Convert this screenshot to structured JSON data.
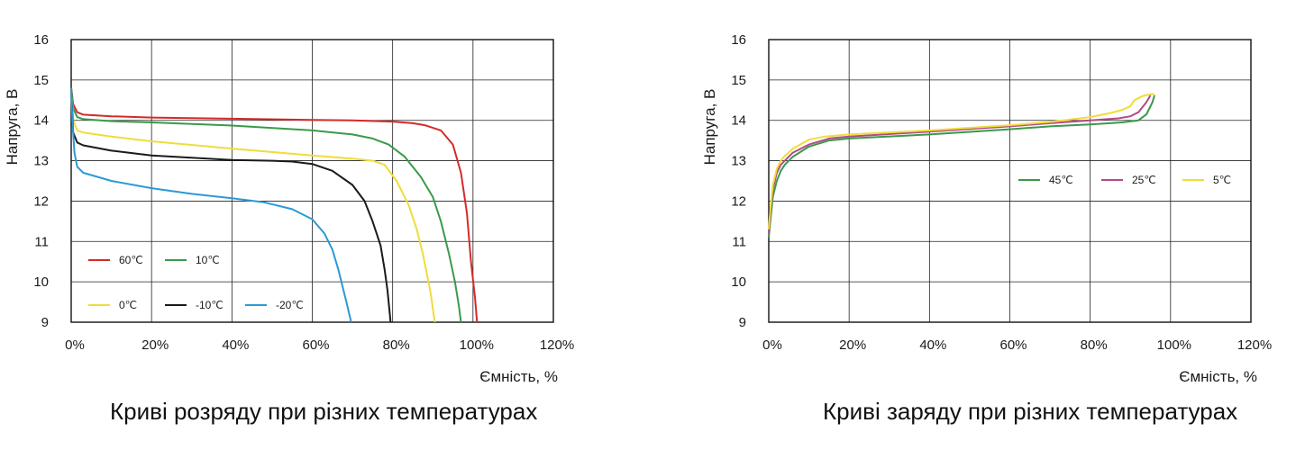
{
  "chart_data": [
    {
      "type": "line",
      "caption": "Криві розряду при різних температурах",
      "xlabel": "Ємність, %",
      "ylabel": "Напруга, В",
      "xlim": [
        0,
        120
      ],
      "ylim": [
        9,
        16
      ],
      "x_ticks": [
        "0%",
        "20%",
        "40%",
        "60%",
        "80%",
        "100%",
        "120%"
      ],
      "y_ticks": [
        "9",
        "10",
        "11",
        "12",
        "13",
        "14",
        "15",
        "16"
      ],
      "grid": true,
      "legend_position": "inside-bottom-left",
      "series": [
        {
          "name": "60℃",
          "color": "#d42a2a",
          "x": [
            0,
            0.5,
            1.5,
            3,
            10,
            20,
            40,
            60,
            70,
            80,
            85,
            88,
            92,
            95,
            97,
            98.5,
            99.5,
            100.5,
            101
          ],
          "y": [
            14.8,
            14.4,
            14.2,
            14.14,
            14.1,
            14.07,
            14.04,
            14.01,
            14.0,
            13.97,
            13.93,
            13.88,
            13.75,
            13.4,
            12.7,
            11.7,
            10.5,
            9.6,
            9.0
          ]
        },
        {
          "name": "10℃",
          "color": "#3a9a4a",
          "x": [
            0,
            0.5,
            1.5,
            3,
            10,
            20,
            40,
            60,
            70,
            75,
            79,
            83,
            87,
            90,
            92,
            94,
            95.5,
            96.5,
            97
          ],
          "y": [
            14.8,
            14.3,
            14.08,
            14.03,
            13.98,
            13.95,
            13.87,
            13.75,
            13.65,
            13.55,
            13.4,
            13.1,
            12.6,
            12.1,
            11.5,
            10.7,
            10.0,
            9.4,
            9.0
          ]
        },
        {
          "name": "0℃",
          "color": "#f0dc3c",
          "x": [
            0,
            0.5,
            1.5,
            3,
            10,
            20,
            40,
            60,
            70,
            75,
            78,
            81,
            84,
            86,
            87.5,
            88.5,
            89.5,
            90.2,
            90.5
          ],
          "y": [
            14.8,
            14.0,
            13.75,
            13.7,
            13.6,
            13.48,
            13.3,
            13.13,
            13.05,
            13.0,
            12.9,
            12.5,
            11.9,
            11.3,
            10.7,
            10.2,
            9.7,
            9.2,
            9.0
          ]
        },
        {
          "name": "-10℃",
          "color": "#1a1a1a",
          "x": [
            0,
            0.5,
            1.5,
            3,
            10,
            20,
            40,
            50,
            55,
            60,
            65,
            70,
            73,
            75,
            77,
            78,
            78.7,
            79.2,
            79.5
          ],
          "y": [
            14.8,
            13.7,
            13.45,
            13.38,
            13.25,
            13.13,
            13.02,
            13.0,
            12.98,
            12.92,
            12.75,
            12.4,
            12.0,
            11.5,
            10.9,
            10.3,
            9.8,
            9.3,
            9.0
          ]
        },
        {
          "name": "-20℃",
          "color": "#2a9ad6",
          "x": [
            0,
            0.3,
            0.8,
            1.5,
            3,
            10,
            20,
            30,
            40,
            48,
            55,
            60,
            63,
            65,
            66.5,
            67.5,
            68.5,
            69.2,
            69.7
          ],
          "y": [
            14.8,
            14.0,
            13.2,
            12.85,
            12.7,
            12.5,
            12.32,
            12.18,
            12.07,
            11.97,
            11.8,
            11.55,
            11.2,
            10.8,
            10.3,
            9.9,
            9.5,
            9.2,
            9.0
          ]
        }
      ]
    },
    {
      "type": "line",
      "caption": "Криві заряду при різних температурах",
      "xlabel": "Ємність, %",
      "ylabel": "Напруга, В",
      "xlim": [
        0,
        120
      ],
      "ylim": [
        9,
        16
      ],
      "x_ticks": [
        "0%",
        "20%",
        "40%",
        "60%",
        "80%",
        "100%",
        "120%"
      ],
      "y_ticks": [
        "9",
        "10",
        "11",
        "12",
        "13",
        "14",
        "15",
        "16"
      ],
      "grid": true,
      "legend_position": "inside-right",
      "series": [
        {
          "name": "45℃",
          "color": "#3a9a4a",
          "x": [
            0,
            0.5,
            1,
            2,
            3,
            4,
            6,
            10,
            15,
            20,
            40,
            60,
            70,
            80,
            88,
            92,
            94,
            95.5,
            96
          ],
          "y": [
            11.1,
            11.6,
            12.1,
            12.5,
            12.75,
            12.9,
            13.1,
            13.35,
            13.5,
            13.55,
            13.65,
            13.78,
            13.85,
            13.9,
            13.95,
            14.0,
            14.15,
            14.45,
            14.62
          ]
        },
        {
          "name": "25℃",
          "color": "#b04a8c",
          "x": [
            0,
            0.5,
            1,
            2,
            3,
            4,
            6,
            10,
            15,
            20,
            40,
            60,
            70,
            80,
            87,
            90,
            92,
            94,
            95
          ],
          "y": [
            11.2,
            11.8,
            12.3,
            12.7,
            12.9,
            13.0,
            13.2,
            13.4,
            13.55,
            13.6,
            13.72,
            13.85,
            13.93,
            14.0,
            14.05,
            14.1,
            14.2,
            14.45,
            14.62
          ]
        },
        {
          "name": "5℃",
          "color": "#f0dc3c",
          "x": [
            0,
            0.5,
            1,
            2,
            3,
            4,
            6,
            10,
            14,
            20,
            40,
            60,
            70,
            80,
            85,
            88,
            90,
            91,
            93,
            95,
            96
          ],
          "y": [
            11.3,
            11.9,
            12.4,
            12.8,
            13.0,
            13.12,
            13.3,
            13.52,
            13.6,
            13.65,
            13.75,
            13.88,
            13.96,
            14.08,
            14.18,
            14.26,
            14.35,
            14.5,
            14.6,
            14.65,
            14.65
          ]
        }
      ]
    }
  ]
}
